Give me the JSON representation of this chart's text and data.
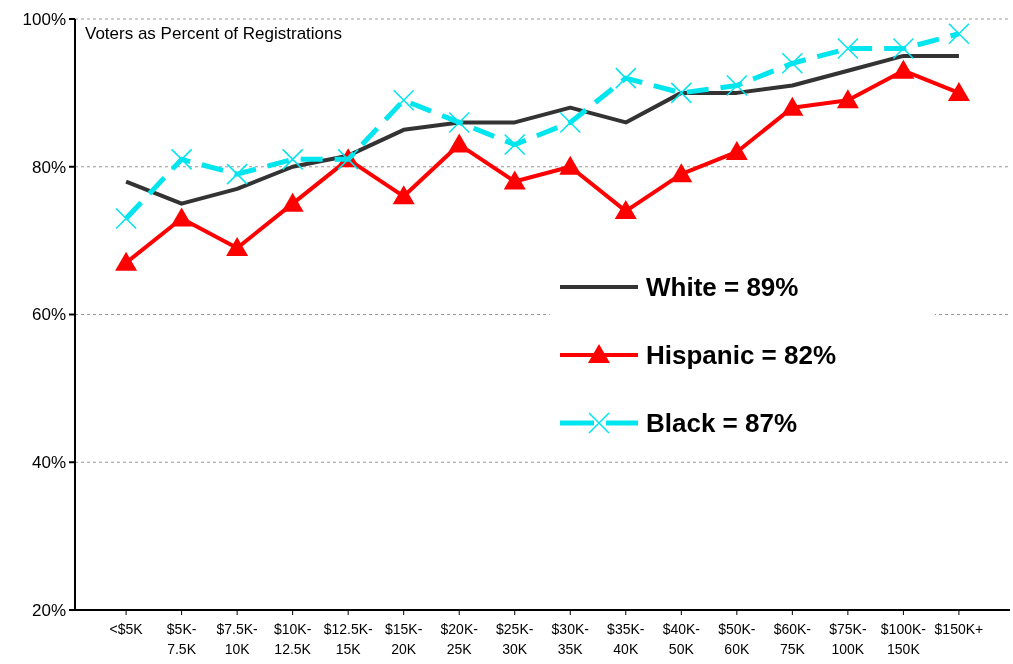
{
  "chart_data": {
    "type": "line",
    "title": "Voters as Percent of Registrations",
    "categories": [
      "<$5K",
      "$5K-\n7.5K",
      "$7.5K-\n10K",
      "$10K-\n12.5K",
      "$12.5K-\n15K",
      "$15K-\n20K",
      "$20K-\n25K",
      "$25K-\n30K",
      "$30K-\n35K",
      "$35K-\n40K",
      "$40K-\n50K",
      "$50K-\n60K",
      "$60K-\n75K",
      "$75K-\n100K",
      "$100K-\n150K",
      "$150K+"
    ],
    "series": [
      {
        "name": "White = 89%",
        "color": "#333333",
        "marker": "none",
        "line_style": "solid",
        "values": [
          78,
          75,
          77,
          80,
          81.5,
          85,
          86,
          86,
          88,
          86,
          90,
          90,
          91,
          93,
          95,
          95
        ]
      },
      {
        "name": "Hispanic = 82%",
        "color": "#ff0000",
        "marker": "triangle",
        "line_style": "solid",
        "values": [
          67,
          73,
          69,
          75,
          81,
          76,
          83,
          78,
          80,
          74,
          79,
          82,
          88,
          89,
          93,
          90
        ]
      },
      {
        "name": "Black = 87%",
        "color": "#00e5ee",
        "marker": "cross",
        "line_style": "dashed",
        "values": [
          73,
          81,
          79,
          81,
          81,
          89,
          86,
          83,
          86,
          92,
          90,
          91,
          94,
          96,
          96,
          98
        ]
      }
    ],
    "ylim": [
      20,
      100
    ],
    "yticks": [
      {
        "value": 20,
        "label": "20%"
      },
      {
        "value": 40,
        "label": "40%"
      },
      {
        "value": 60,
        "label": "60%"
      },
      {
        "value": 80,
        "label": "80%"
      },
      {
        "value": 100,
        "label": "100%"
      }
    ],
    "grid": "y",
    "legend": "right"
  }
}
